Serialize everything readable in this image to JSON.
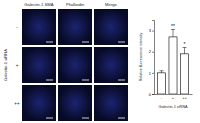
{
  "figure": {
    "columns": [
      "Galectin-1 SMA",
      "Phalloidin",
      "Merge"
    ],
    "rows": [
      "-",
      "+",
      "++"
    ],
    "row_title": "Galectin-1 siRNA"
  },
  "chart_data": {
    "type": "bar",
    "categories": [
      "-",
      "+",
      "++"
    ],
    "values": [
      1,
      2.7,
      1.9
    ],
    "errors": [
      0.1,
      0.35,
      0.3
    ],
    "significance": [
      null,
      "**",
      "*"
    ],
    "color": "#ffffff",
    "ylim": [
      0,
      3.5
    ],
    "yticks": [
      0,
      1,
      2,
      3
    ],
    "y_label": "Relative fluorescence intensity",
    "x_label": "Galectin-1 siRNA"
  }
}
